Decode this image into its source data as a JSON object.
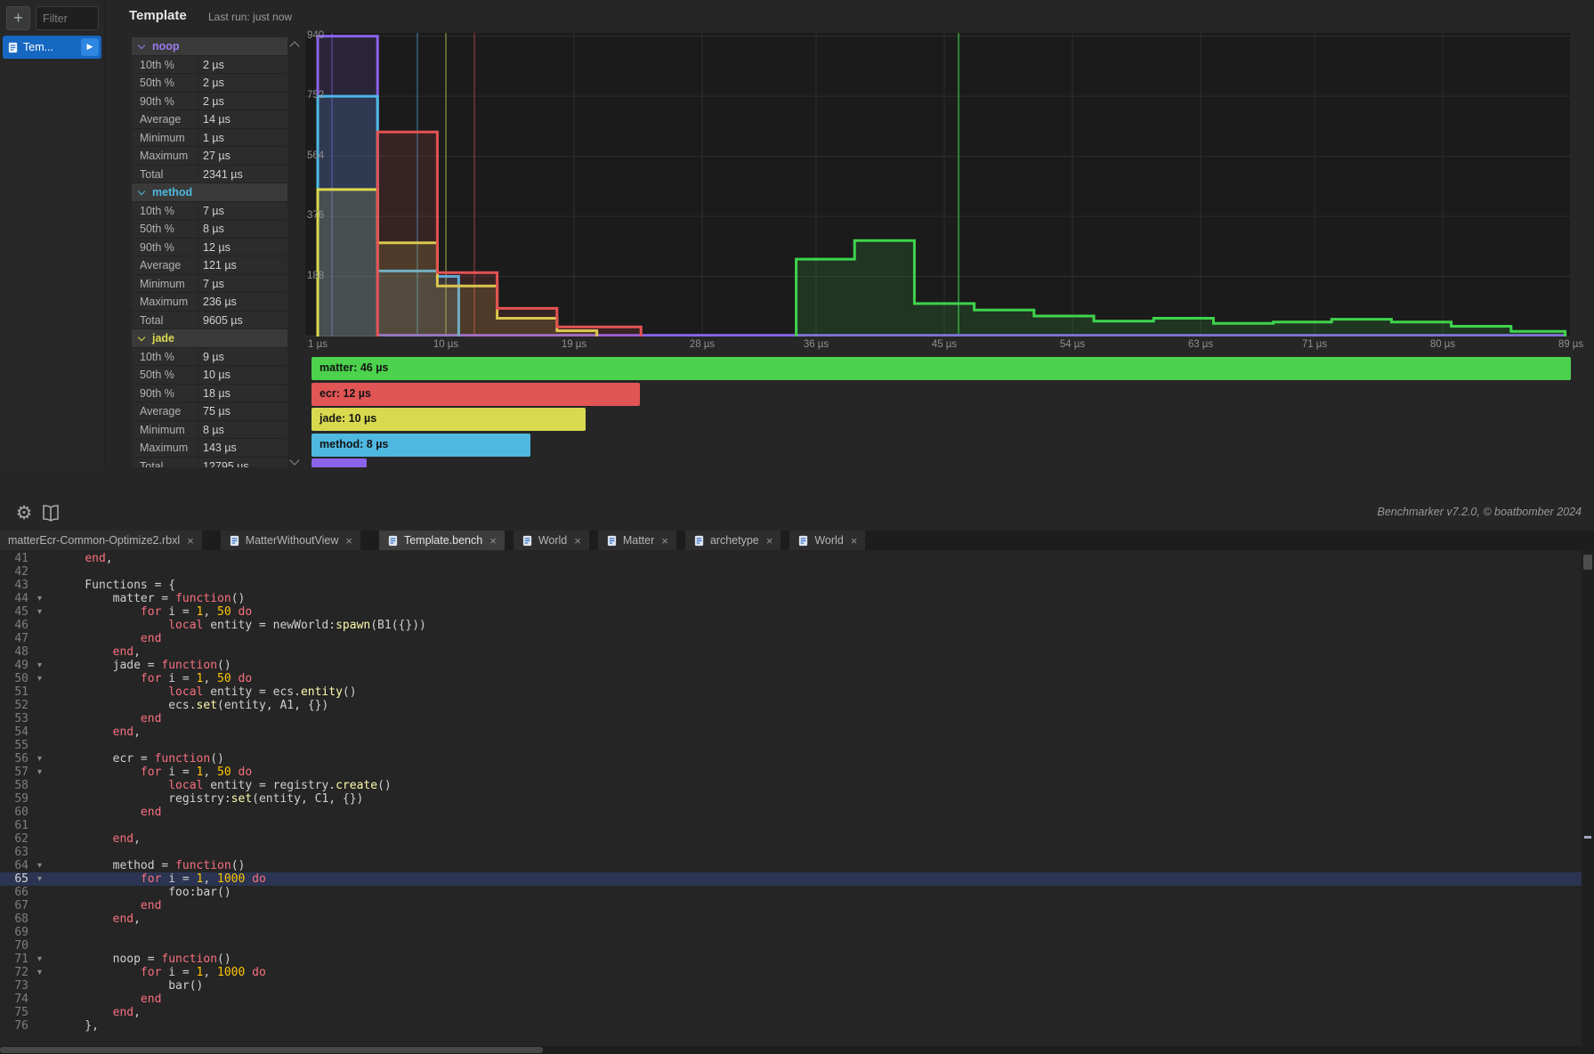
{
  "icons": {
    "gear": "⚙",
    "play": "▶",
    "fold": "▾"
  },
  "plugin": {
    "toolbar": {
      "add_label": "+",
      "filter_placeholder": "Filter"
    },
    "bench_list": [
      {
        "label": "Tem...",
        "selected": true
      }
    ],
    "header": {
      "title": "Template",
      "last_run": "Last run: just now"
    },
    "footer": {
      "credits": "Benchmarker v7.2.0, © boatbomber 2024"
    },
    "stats_sections": [
      {
        "name": "noop",
        "color": "#9a7df0",
        "rows": [
          [
            "10th %",
            "2 µs"
          ],
          [
            "50th %",
            "2 µs"
          ],
          [
            "90th %",
            "2 µs"
          ],
          [
            "Average",
            "14 µs"
          ],
          [
            "Minimum",
            "1 µs"
          ],
          [
            "Maximum",
            "27 µs"
          ],
          [
            "Total",
            "2341 µs"
          ]
        ]
      },
      {
        "name": "method",
        "color": "#4fb8e0",
        "rows": [
          [
            "10th %",
            "7 µs"
          ],
          [
            "50th %",
            "8 µs"
          ],
          [
            "90th %",
            "12 µs"
          ],
          [
            "Average",
            "121 µs"
          ],
          [
            "Minimum",
            "7 µs"
          ],
          [
            "Maximum",
            "236 µs"
          ],
          [
            "Total",
            "9605 µs"
          ]
        ]
      },
      {
        "name": "jade",
        "color": "#d9d950",
        "rows": [
          [
            "10th %",
            "9 µs"
          ],
          [
            "50th %",
            "10 µs"
          ],
          [
            "90th %",
            "18 µs"
          ],
          [
            "Average",
            "75 µs"
          ],
          [
            "Minimum",
            "8 µs"
          ],
          [
            "Maximum",
            "143 µs"
          ],
          [
            "Total",
            "12795 µs"
          ]
        ]
      }
    ]
  },
  "chart_data": {
    "type": "area",
    "title": "",
    "xlabel_unit": "µs",
    "xlim": [
      1,
      89
    ],
    "ylim": [
      0,
      950
    ],
    "grid": true,
    "x_ticks": [
      1,
      10,
      19,
      28,
      36,
      45,
      54,
      63,
      71,
      80,
      89
    ],
    "x_tick_labels": [
      "1 µs",
      "10 µs",
      "19 µs",
      "28 µs",
      "36 µs",
      "45 µs",
      "54 µs",
      "63 µs",
      "71 µs",
      "80 µs",
      "89 µs"
    ],
    "y_ticks": [
      188,
      376,
      564,
      752,
      940
    ],
    "series": [
      {
        "name": "noop",
        "color": "#8a63ea",
        "median_us": 2,
        "steps": [
          [
            1,
            0
          ],
          [
            1,
            940
          ],
          [
            5.2,
            940
          ],
          [
            5.2,
            4
          ],
          [
            88.6,
            4
          ],
          [
            88.6,
            0
          ]
        ]
      },
      {
        "name": "method",
        "color": "#4cb9e8",
        "median_us": 8,
        "steps": [
          [
            1,
            0
          ],
          [
            1,
            752
          ],
          [
            5.2,
            752
          ],
          [
            5.2,
            205
          ],
          [
            9.4,
            205
          ],
          [
            9.4,
            188
          ],
          [
            10.9,
            188
          ],
          [
            10.9,
            0
          ]
        ]
      },
      {
        "name": "jade",
        "color": "#d9d94e",
        "median_us": 10,
        "steps": [
          [
            1,
            0
          ],
          [
            1,
            460
          ],
          [
            5.2,
            460
          ],
          [
            5.2,
            293
          ],
          [
            9.4,
            293
          ],
          [
            9.4,
            158
          ],
          [
            13.6,
            158
          ],
          [
            13.6,
            57
          ],
          [
            17.8,
            57
          ],
          [
            17.8,
            18
          ],
          [
            20.6,
            18
          ],
          [
            20.6,
            0
          ]
        ]
      },
      {
        "name": "ecr",
        "color": "#e45252",
        "median_us": 12,
        "steps": [
          [
            5.2,
            0
          ],
          [
            5.2,
            640
          ],
          [
            9.4,
            640
          ],
          [
            9.4,
            200
          ],
          [
            13.6,
            200
          ],
          [
            13.6,
            88
          ],
          [
            17.8,
            88
          ],
          [
            17.8,
            30
          ],
          [
            23.7,
            30
          ],
          [
            23.7,
            0
          ]
        ]
      },
      {
        "name": "matter",
        "color": "#3fd44d",
        "median_us": 46,
        "steps": [
          [
            34.6,
            0
          ],
          [
            34.6,
            242
          ],
          [
            38.7,
            242
          ],
          [
            38.7,
            300
          ],
          [
            42.9,
            300
          ],
          [
            42.9,
            103
          ],
          [
            47.1,
            103
          ],
          [
            47.1,
            83
          ],
          [
            51.3,
            83
          ],
          [
            51.3,
            64
          ],
          [
            55.5,
            64
          ],
          [
            55.5,
            48
          ],
          [
            59.7,
            48
          ],
          [
            59.7,
            57
          ],
          [
            63.9,
            57
          ],
          [
            63.9,
            41
          ],
          [
            68.1,
            41
          ],
          [
            68.1,
            45
          ],
          [
            72.2,
            45
          ],
          [
            72.2,
            54
          ],
          [
            76.4,
            54
          ],
          [
            76.4,
            45
          ],
          [
            80.6,
            45
          ],
          [
            80.6,
            32
          ],
          [
            84.8,
            32
          ],
          [
            84.8,
            16
          ],
          [
            88.6,
            16
          ],
          [
            88.6,
            0
          ]
        ]
      }
    ],
    "legend_max": 46,
    "legend": [
      {
        "name": "matter",
        "label": "matter: 46 µs",
        "value": 46,
        "color": "#4cd24c"
      },
      {
        "name": "ecr",
        "label": "ecr: 12 µs",
        "value": 12,
        "color": "#e25555"
      },
      {
        "name": "jade",
        "label": "jade: 10 µs",
        "value": 10,
        "color": "#d9d950"
      },
      {
        "name": "method",
        "label": "method: 8 µs",
        "value": 8,
        "color": "#4fb8e0"
      },
      {
        "name": "noop",
        "label": "",
        "value": 2,
        "color": "#8a63ea"
      }
    ]
  },
  "tabs": [
    {
      "label": "matterEcr-Common-Optimize2.rbxl",
      "close": "×",
      "icon": false,
      "active": false,
      "gap_after": true
    },
    {
      "label": "MatterWithoutView",
      "close": "×",
      "icon": true,
      "active": false,
      "gap_after": true
    },
    {
      "label": "Template.bench",
      "close": "×",
      "icon": true,
      "active": true,
      "gap_after": false
    },
    {
      "label": "World",
      "close": "×",
      "icon": true,
      "active": false,
      "gap_after": false
    },
    {
      "label": "Matter",
      "close": "×",
      "icon": true,
      "active": false,
      "gap_after": false
    },
    {
      "label": "archetype",
      "close": "×",
      "icon": true,
      "active": false,
      "gap_after": false
    },
    {
      "label": "World",
      "close": "×",
      "icon": true,
      "active": false,
      "gap_after": false
    }
  ],
  "editor": {
    "current_line": 65,
    "lines": [
      {
        "n": 41,
        "t": [
          [
            "p",
            "    "
          ],
          [
            "k",
            "end"
          ],
          [
            "p",
            ","
          ]
        ]
      },
      {
        "n": 42,
        "t": []
      },
      {
        "n": 43,
        "t": [
          [
            "p",
            "    Functions = {"
          ]
        ]
      },
      {
        "n": 44,
        "fold": 1,
        "t": [
          [
            "p",
            "        matter = "
          ],
          [
            "k",
            "function"
          ],
          [
            "p",
            "()"
          ]
        ]
      },
      {
        "n": 45,
        "fold": 1,
        "t": [
          [
            "p",
            "            "
          ],
          [
            "k",
            "for"
          ],
          [
            "p",
            " i = "
          ],
          [
            "n",
            "1"
          ],
          [
            "p",
            ", "
          ],
          [
            "n",
            "50"
          ],
          [
            "p",
            " "
          ],
          [
            "k",
            "do"
          ]
        ]
      },
      {
        "n": 46,
        "t": [
          [
            "p",
            "                "
          ],
          [
            "k",
            "local"
          ],
          [
            "p",
            " entity = newWorld:"
          ],
          [
            "m",
            "spawn"
          ],
          [
            "p",
            "(B1({}))"
          ]
        ]
      },
      {
        "n": 47,
        "t": [
          [
            "p",
            "            "
          ],
          [
            "k",
            "end"
          ]
        ]
      },
      {
        "n": 48,
        "t": [
          [
            "p",
            "        "
          ],
          [
            "k",
            "end"
          ],
          [
            "p",
            ","
          ]
        ]
      },
      {
        "n": 49,
        "fold": 1,
        "t": [
          [
            "p",
            "        jade = "
          ],
          [
            "k",
            "function"
          ],
          [
            "p",
            "()"
          ]
        ]
      },
      {
        "n": 50,
        "fold": 1,
        "t": [
          [
            "p",
            "            "
          ],
          [
            "k",
            "for"
          ],
          [
            "p",
            " i = "
          ],
          [
            "n",
            "1"
          ],
          [
            "p",
            ", "
          ],
          [
            "n",
            "50"
          ],
          [
            "p",
            " "
          ],
          [
            "k",
            "do"
          ]
        ]
      },
      {
        "n": 51,
        "t": [
          [
            "p",
            "                "
          ],
          [
            "k",
            "local"
          ],
          [
            "p",
            " entity = ecs."
          ],
          [
            "m",
            "entity"
          ],
          [
            "p",
            "()"
          ]
        ]
      },
      {
        "n": 52,
        "t": [
          [
            "p",
            "                ecs."
          ],
          [
            "m",
            "set"
          ],
          [
            "p",
            "(entity, A1, {})"
          ]
        ]
      },
      {
        "n": 53,
        "t": [
          [
            "p",
            "            "
          ],
          [
            "k",
            "end"
          ]
        ]
      },
      {
        "n": 54,
        "t": [
          [
            "p",
            "        "
          ],
          [
            "k",
            "end"
          ],
          [
            "p",
            ","
          ]
        ]
      },
      {
        "n": 55,
        "t": []
      },
      {
        "n": 56,
        "fold": 1,
        "t": [
          [
            "p",
            "        ecr = "
          ],
          [
            "k",
            "function"
          ],
          [
            "p",
            "()"
          ]
        ]
      },
      {
        "n": 57,
        "fold": 1,
        "t": [
          [
            "p",
            "            "
          ],
          [
            "k",
            "for"
          ],
          [
            "p",
            " i = "
          ],
          [
            "n",
            "1"
          ],
          [
            "p",
            ", "
          ],
          [
            "n",
            "50"
          ],
          [
            "p",
            " "
          ],
          [
            "k",
            "do"
          ]
        ]
      },
      {
        "n": 58,
        "t": [
          [
            "p",
            "                "
          ],
          [
            "k",
            "local"
          ],
          [
            "p",
            " entity = registry."
          ],
          [
            "m",
            "create"
          ],
          [
            "p",
            "()"
          ]
        ]
      },
      {
        "n": 59,
        "t": [
          [
            "p",
            "                registry:"
          ],
          [
            "m",
            "set"
          ],
          [
            "p",
            "(entity, C1, {})"
          ]
        ]
      },
      {
        "n": 60,
        "t": [
          [
            "p",
            "            "
          ],
          [
            "k",
            "end"
          ]
        ]
      },
      {
        "n": 61,
        "t": []
      },
      {
        "n": 62,
        "t": [
          [
            "p",
            "        "
          ],
          [
            "k",
            "end"
          ],
          [
            "p",
            ","
          ]
        ]
      },
      {
        "n": 63,
        "t": []
      },
      {
        "n": 64,
        "fold": 1,
        "t": [
          [
            "p",
            "        method = "
          ],
          [
            "k",
            "function"
          ],
          [
            "p",
            "()"
          ]
        ]
      },
      {
        "n": 65,
        "fold": 1,
        "cur": 1,
        "t": [
          [
            "p",
            "            "
          ],
          [
            "k",
            "for"
          ],
          [
            "p",
            " i = "
          ],
          [
            "n",
            "1"
          ],
          [
            "p",
            ", "
          ],
          [
            "n",
            "1000"
          ],
          [
            "p",
            " "
          ],
          [
            "k",
            "do"
          ]
        ]
      },
      {
        "n": 66,
        "t": [
          [
            "p",
            "                foo:bar()"
          ]
        ]
      },
      {
        "n": 67,
        "t": [
          [
            "p",
            "            "
          ],
          [
            "k",
            "end"
          ]
        ]
      },
      {
        "n": 68,
        "t": [
          [
            "p",
            "        "
          ],
          [
            "k",
            "end"
          ],
          [
            "p",
            ","
          ]
        ]
      },
      {
        "n": 69,
        "t": []
      },
      {
        "n": 70,
        "t": []
      },
      {
        "n": 71,
        "fold": 1,
        "t": [
          [
            "p",
            "        noop = "
          ],
          [
            "k",
            "function"
          ],
          [
            "p",
            "()"
          ]
        ]
      },
      {
        "n": 72,
        "fold": 1,
        "t": [
          [
            "p",
            "            "
          ],
          [
            "k",
            "for"
          ],
          [
            "p",
            " i = "
          ],
          [
            "n",
            "1"
          ],
          [
            "p",
            ", "
          ],
          [
            "n",
            "1000"
          ],
          [
            "p",
            " "
          ],
          [
            "k",
            "do"
          ]
        ]
      },
      {
        "n": 73,
        "t": [
          [
            "p",
            "                bar()"
          ]
        ]
      },
      {
        "n": 74,
        "t": [
          [
            "p",
            "            "
          ],
          [
            "k",
            "end"
          ]
        ]
      },
      {
        "n": 75,
        "t": [
          [
            "p",
            "        "
          ],
          [
            "k",
            "end"
          ],
          [
            "p",
            ","
          ]
        ]
      },
      {
        "n": 76,
        "t": [
          [
            "p",
            "    },"
          ]
        ]
      }
    ]
  }
}
